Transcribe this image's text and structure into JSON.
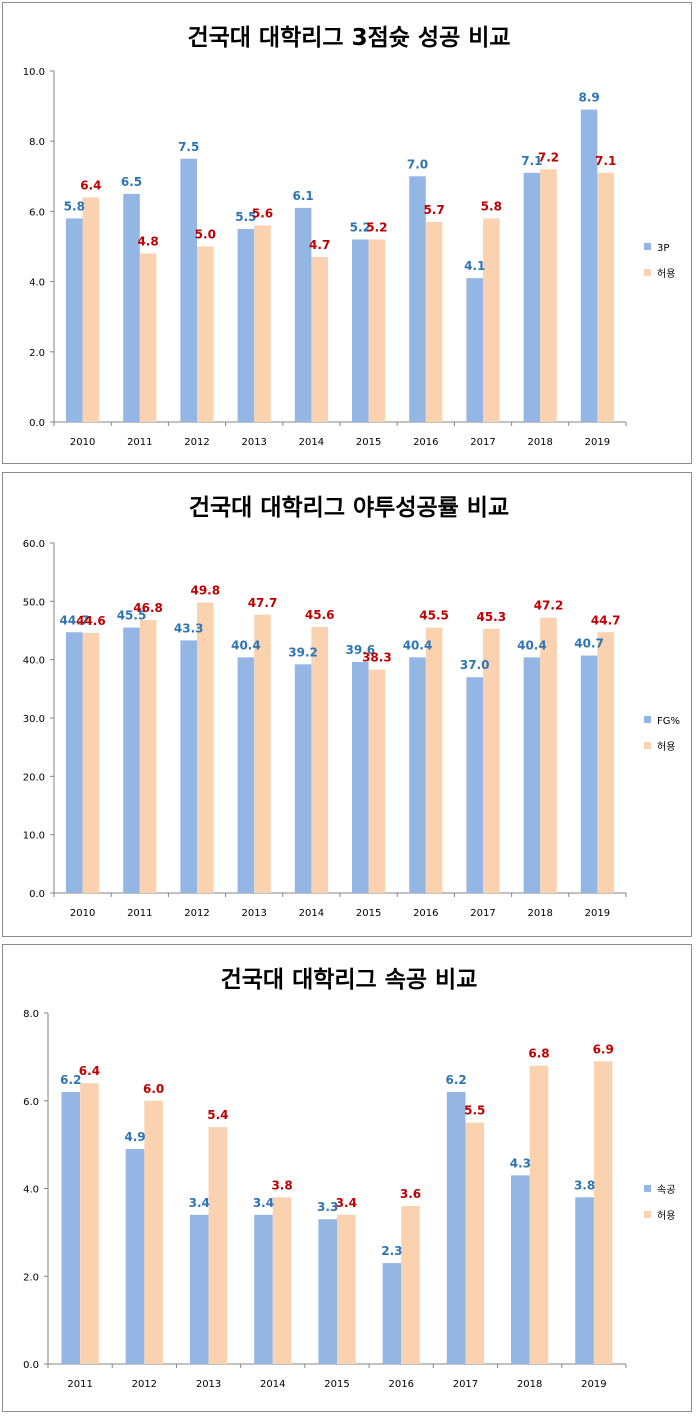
{
  "colors": {
    "series1": "#94B6E4",
    "series2": "#FAD2B0",
    "label1": "#2E75B6",
    "label2": "#C00000",
    "axis": "#868686"
  },
  "chart_data": [
    {
      "type": "bar",
      "title": "건국대 대학리그 3점슛 성공 비교",
      "categories": [
        "2010",
        "2011",
        "2012",
        "2013",
        "2014",
        "2015",
        "2016",
        "2017",
        "2018",
        "2019"
      ],
      "ylim": [
        0,
        10
      ],
      "yticks": [
        "0.0",
        "2.0",
        "4.0",
        "6.0",
        "8.0",
        "10.0"
      ],
      "ytick_values": [
        0,
        2,
        4,
        6,
        8,
        10
      ],
      "series": [
        {
          "name": "3P",
          "values": [
            5.8,
            6.5,
            7.5,
            5.5,
            6.1,
            5.2,
            7.0,
            4.1,
            7.1,
            8.9
          ],
          "labels": [
            "5.8",
            "6.5",
            "7.5",
            "5.5",
            "6.1",
            "5.2",
            "7.0",
            "4.1",
            "7.1",
            "8.9"
          ]
        },
        {
          "name": "허용",
          "values": [
            6.4,
            4.8,
            5.0,
            5.6,
            4.7,
            5.2,
            5.7,
            5.8,
            7.2,
            7.1
          ],
          "labels": [
            "6.4",
            "4.8",
            "5.0",
            "5.6",
            "4.7",
            "5.2",
            "5.7",
            "5.8",
            "7.2",
            "7.1"
          ]
        }
      ],
      "legend": "right"
    },
    {
      "type": "bar",
      "title": "건국대 대학리그 야투성공률 비교",
      "categories": [
        "2010",
        "2011",
        "2012",
        "2013",
        "2014",
        "2015",
        "2016",
        "2017",
        "2018",
        "2019"
      ],
      "ylim": [
        0,
        60
      ],
      "yticks": [
        "0.0",
        "10.0",
        "20.0",
        "30.0",
        "40.0",
        "50.0",
        "60.0"
      ],
      "ytick_values": [
        0,
        10,
        20,
        30,
        40,
        50,
        60
      ],
      "series": [
        {
          "name": "FG%",
          "values": [
            44.7,
            45.5,
            43.3,
            40.4,
            39.2,
            39.6,
            40.4,
            37.0,
            40.4,
            40.7
          ],
          "labels": [
            "44.7",
            "45.5",
            "43.3",
            "40.4",
            "39.2",
            "39.6",
            "40.4",
            "37.0",
            "40.4",
            "40.7"
          ]
        },
        {
          "name": "허용",
          "values": [
            44.6,
            46.8,
            49.8,
            47.7,
            45.6,
            38.3,
            45.5,
            45.3,
            47.2,
            44.7
          ],
          "labels": [
            "44.6",
            "46.8",
            "49.8",
            "47.7",
            "45.6",
            "38.3",
            "45.5",
            "45.3",
            "47.2",
            "44.7"
          ]
        }
      ],
      "legend": "right"
    },
    {
      "type": "bar",
      "title": "건국대 대학리그 속공 비교",
      "categories": [
        "2011",
        "2012",
        "2013",
        "2014",
        "2015",
        "2016",
        "2017",
        "2018",
        "2019"
      ],
      "ylim": [
        0,
        8
      ],
      "yticks": [
        "0.0",
        "2.0",
        "4.0",
        "6.0",
        "8.0"
      ],
      "ytick_values": [
        0,
        2,
        4,
        6,
        8
      ],
      "series": [
        {
          "name": "속공",
          "values": [
            6.2,
            4.9,
            3.4,
            3.4,
            3.3,
            2.3,
            6.2,
            4.3,
            3.8
          ],
          "labels": [
            "6.2",
            "4.9",
            "3.4",
            "3.4",
            "3.3",
            "2.3",
            "6.2",
            "4.3",
            "3.8"
          ]
        },
        {
          "name": "허용",
          "values": [
            6.4,
            6.0,
            5.4,
            3.8,
            3.4,
            3.6,
            5.5,
            6.8,
            6.9
          ],
          "labels": [
            "6.4",
            "6.0",
            "5.4",
            "3.8",
            "3.4",
            "3.6",
            "5.5",
            "6.8",
            "6.9"
          ]
        }
      ],
      "legend": "right"
    }
  ]
}
